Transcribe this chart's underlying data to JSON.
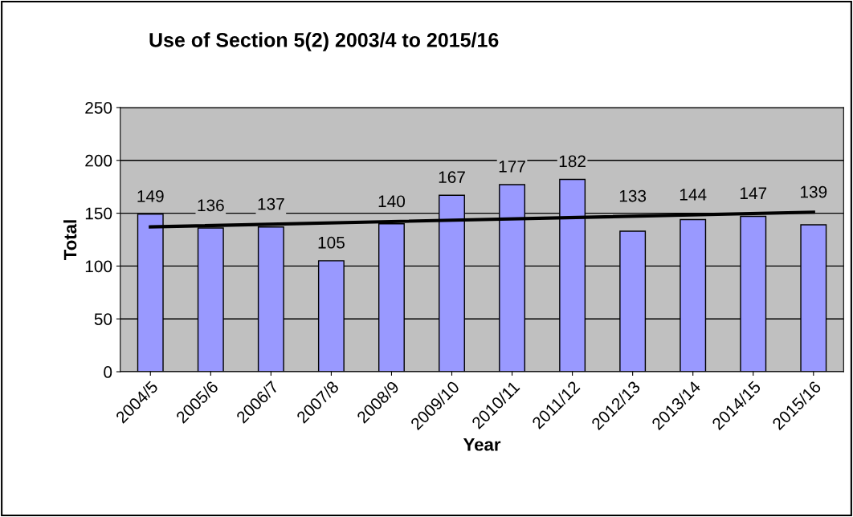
{
  "chart_data": {
    "type": "bar",
    "title": "Use of Section 5(2) 2003/4 to 2015/16",
    "xlabel": "Year",
    "ylabel": "Total",
    "categories": [
      "2004/5",
      "2005/6",
      "2006/7",
      "2007/8",
      "2008/9",
      "2009/10",
      "2010/11",
      "2011/12",
      "2012/13",
      "2013/14",
      "2014/15",
      "2015/16"
    ],
    "series": [
      {
        "color": "#9999ff",
        "values": [
          149,
          136,
          137,
          105,
          140,
          167,
          177,
          182,
          133,
          144,
          147,
          139
        ],
        "data_labels": true
      },
      {
        "type": "line",
        "color": "#000000",
        "x": [
          "2004/5",
          "2015/16"
        ],
        "values": [
          137,
          151
        ]
      }
    ],
    "ylim": [
      0,
      250
    ],
    "yticks": [
      0,
      50,
      100,
      150,
      200,
      250
    ],
    "grid": "y",
    "legend": false
  }
}
